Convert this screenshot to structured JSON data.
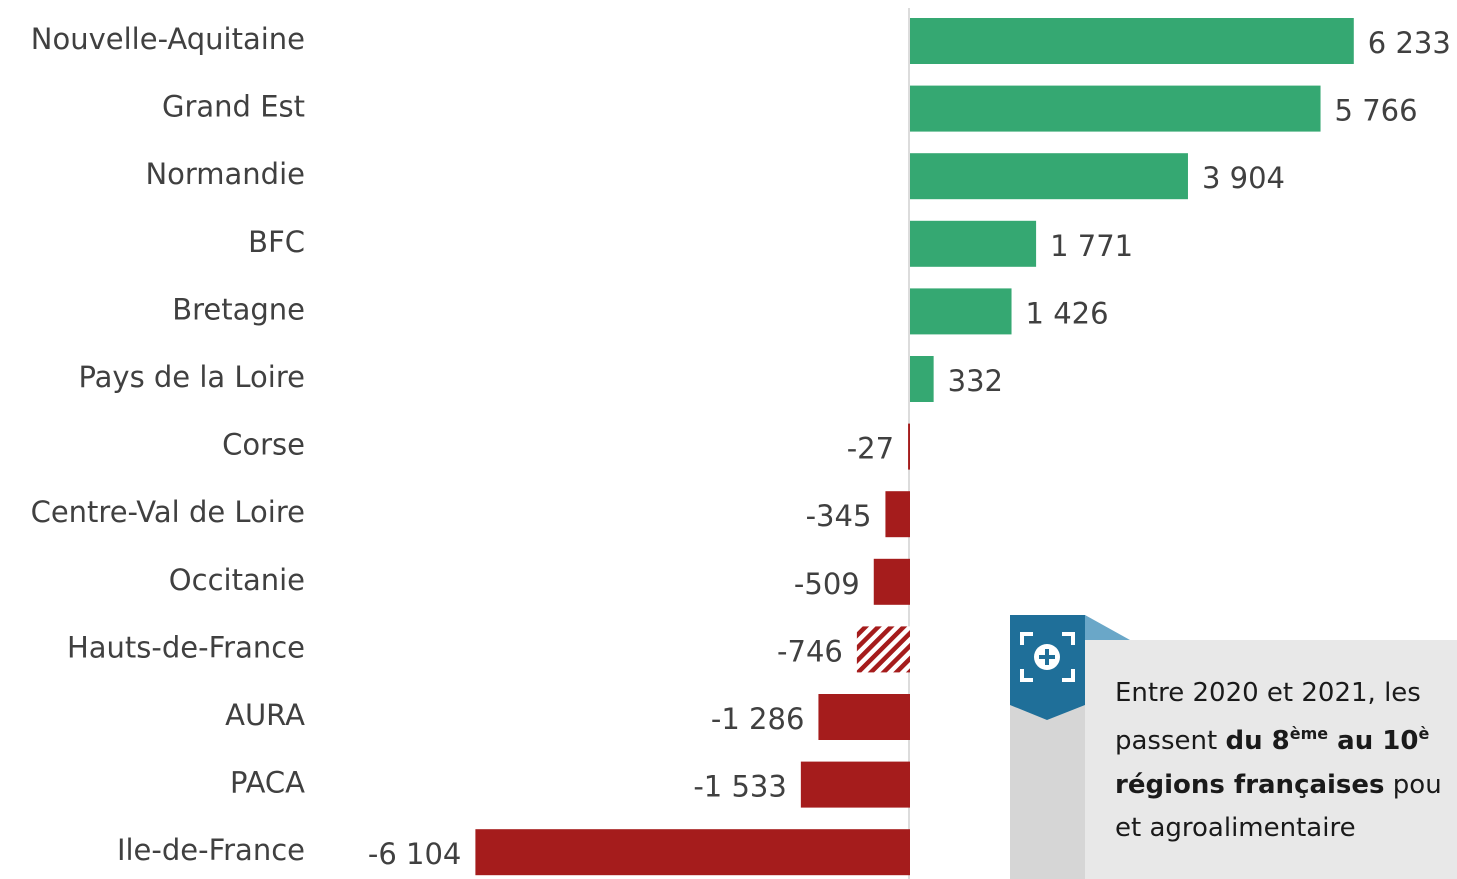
{
  "chart_data": {
    "type": "bar",
    "orientation": "horizontal",
    "categories": [
      "Nouvelle-Aquitaine",
      "Grand Est",
      "Normandie",
      "BFC",
      "Bretagne",
      "Pays de la Loire",
      "Corse",
      "Centre-Val de Loire",
      "Occitanie",
      "Hauts-de-France",
      "AURA",
      "PACA",
      "Ile-de-France"
    ],
    "values": [
      6233,
      5766,
      3904,
      1771,
      1426,
      332,
      -27,
      -345,
      -509,
      -746,
      -1286,
      -1533,
      -6104
    ],
    "value_labels": [
      "6 233",
      "5 766",
      "3 904",
      "1 771",
      "1 426",
      "332",
      "-27",
      "-345",
      "-509",
      "-746",
      "-1 286",
      "-1 533",
      "-6 104"
    ],
    "positive_color": "#35a872",
    "negative_color": "#a51c1c",
    "patterns": [
      "solid",
      "solid",
      "solid",
      "solid",
      "solid",
      "solid",
      "solid",
      "solid",
      "solid",
      "hatched",
      "solid",
      "solid",
      "solid"
    ],
    "annotation": {
      "lines": [
        [
          {
            "text": "Entre 2020 et 2021, les"
          }
        ],
        [
          {
            "text": "passent "
          },
          {
            "text": "du 8",
            "bold": true
          },
          {
            "text": "ème",
            "bold": true,
            "superscript": true
          },
          {
            "text": " au 10",
            "bold": true
          },
          {
            "text": "è",
            "bold": true,
            "superscript": true
          }
        ],
        [
          {
            "text": "régions françaises",
            "bold": true
          },
          {
            "text": " pou"
          }
        ],
        [
          {
            "text": "et agroalimentaire"
          }
        ]
      ]
    }
  }
}
